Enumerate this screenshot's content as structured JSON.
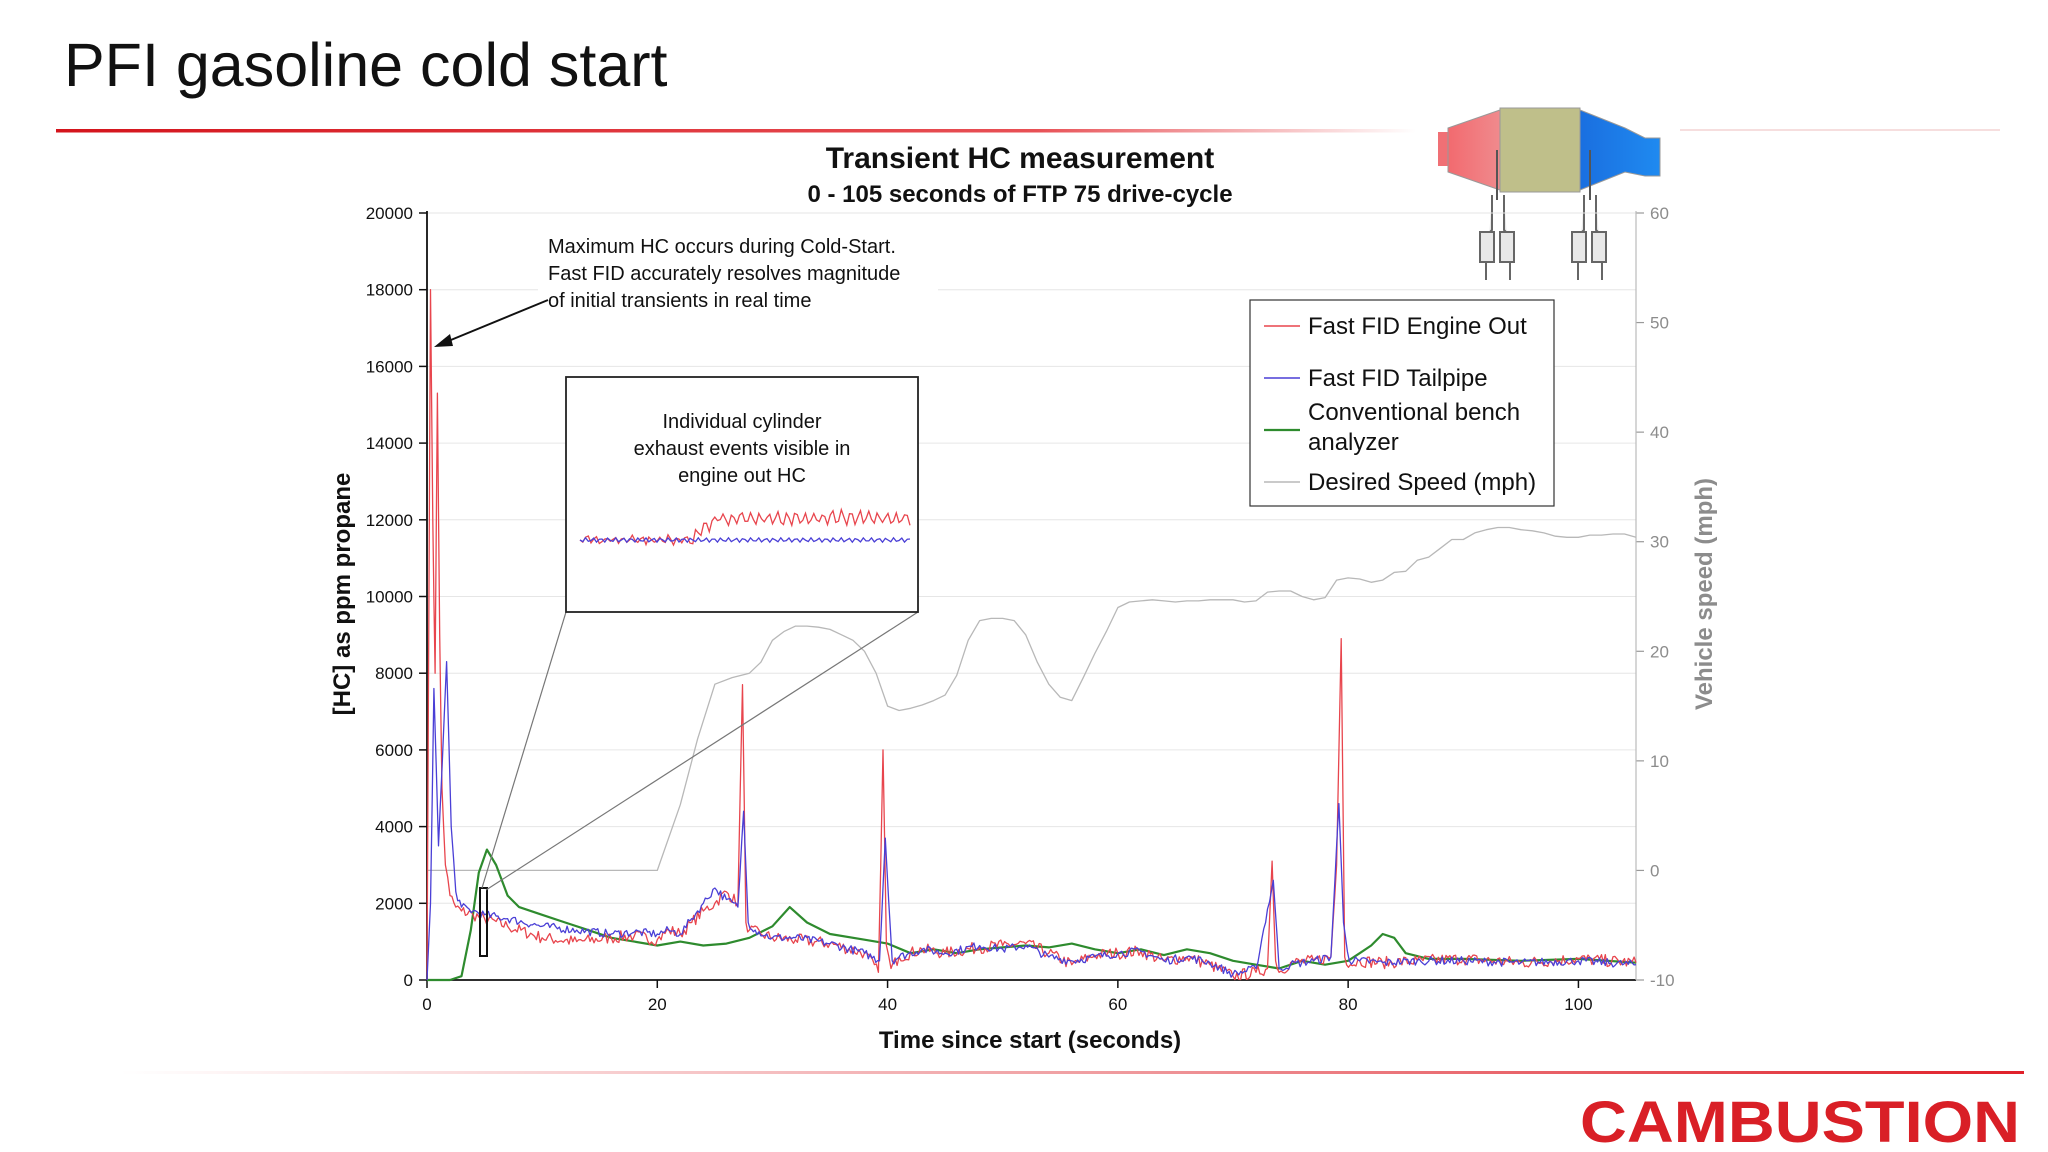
{
  "slide": {
    "title": "PFI gasoline cold start",
    "logo_text": "CAMBUSTION",
    "accent_color": "#e0202a"
  },
  "chart_data": {
    "type": "line",
    "title": "Transient HC measurement",
    "subtitle": "0 - 105 seconds of FTP 75 drive-cycle",
    "xlabel": "Time since start (seconds)",
    "ylabel": "[HC] as ppm propane",
    "y2label": "Vehicle speed (mph)",
    "xlim": [
      0,
      105
    ],
    "ylim": [
      0,
      20000
    ],
    "y2lim": [
      -10,
      60
    ],
    "x_ticks": [
      "0",
      "20",
      "40",
      "60",
      "80",
      "100"
    ],
    "y_ticks": [
      "0",
      "2000",
      "4000",
      "6000",
      "8000",
      "10000",
      "12000",
      "14000",
      "16000",
      "18000",
      "20000"
    ],
    "y2_ticks": [
      "-10",
      "0",
      "10",
      "20",
      "30",
      "40",
      "50",
      "60"
    ],
    "grid": "horizontal",
    "legend_position": "top-right",
    "legend": [
      {
        "label": "Fast FID Engine Out",
        "color": "#e8454d"
      },
      {
        "label": "Fast FID Tailpipe",
        "color": "#4a3fd6"
      },
      {
        "label": "Conventional bench analyzer",
        "color": "#2e8b2e"
      },
      {
        "label": "Desired Speed (mph)",
        "color": "#b8b8b8"
      }
    ],
    "annotations": {
      "cold_start": [
        "Maximum HC occurs during Cold-Start.",
        "Fast FID accurately resolves magnitude",
        "of initial transients in real time"
      ],
      "inset": [
        "Individual cylinder",
        "exhaust events visible in",
        "engine out HC"
      ]
    },
    "series": [
      {
        "name": "Fast FID Engine Out",
        "axis": "left",
        "color": "#e8454d",
        "x": [
          0,
          0.3,
          0.5,
          0.7,
          0.9,
          1.1,
          1.3,
          1.6,
          2,
          2.5,
          3,
          4,
          5,
          7,
          10,
          13,
          16,
          18,
          20,
          21,
          22,
          23,
          24,
          25,
          26,
          27,
          27.4,
          27.7,
          28,
          29,
          30,
          32,
          35,
          38,
          39.2,
          39.6,
          39.9,
          40.3,
          41,
          43,
          45,
          48,
          50,
          52,
          54,
          56,
          58,
          60,
          62,
          64,
          66,
          68,
          70,
          72,
          73,
          73.4,
          73.7,
          74,
          75,
          77,
          78.5,
          79,
          79.4,
          79.7,
          80.2,
          81,
          83,
          86,
          90,
          95,
          100,
          105
        ],
        "values": [
          0,
          18000,
          12000,
          8000,
          15300,
          9000,
          5000,
          3000,
          2200,
          1900,
          1800,
          1700,
          1600,
          1400,
          1100,
          1000,
          1100,
          1150,
          1050,
          1300,
          1200,
          1500,
          1800,
          2000,
          2300,
          2000,
          7700,
          1500,
          1300,
          1200,
          1100,
          1050,
          950,
          700,
          200,
          6000,
          900,
          300,
          600,
          800,
          700,
          850,
          900,
          950,
          700,
          400,
          650,
          700,
          750,
          500,
          600,
          400,
          100,
          200,
          300,
          3100,
          500,
          200,
          450,
          500,
          600,
          3000,
          8900,
          600,
          400,
          500,
          450,
          500,
          550,
          450,
          550,
          450
        ]
      },
      {
        "name": "Fast FID Tailpipe",
        "axis": "left",
        "color": "#4a3fd6",
        "x": [
          0,
          0.3,
          0.6,
          1,
          1.3,
          1.7,
          2.1,
          2.5,
          3,
          4,
          5,
          7,
          10,
          13,
          16,
          18,
          20,
          21,
          22,
          23,
          24,
          25,
          26,
          27,
          27.5,
          27.9,
          28.5,
          30,
          32,
          35,
          38,
          39.3,
          39.8,
          40.4,
          41,
          43,
          45,
          48,
          50,
          52,
          54,
          56,
          58,
          60,
          62,
          64,
          66,
          68,
          70,
          72,
          73.5,
          74,
          75,
          77,
          78.5,
          79.2,
          79.6,
          80.1,
          81,
          83,
          86,
          90,
          95,
          100,
          105
        ],
        "values": [
          0,
          2000,
          7600,
          3500,
          5500,
          8300,
          4000,
          2300,
          1900,
          1800,
          1700,
          1600,
          1400,
          1300,
          1200,
          1250,
          1200,
          1300,
          1200,
          1600,
          2000,
          2400,
          2100,
          1900,
          4400,
          1500,
          1300,
          1100,
          1100,
          950,
          700,
          500,
          3700,
          500,
          600,
          800,
          700,
          900,
          800,
          900,
          600,
          500,
          600,
          700,
          750,
          500,
          600,
          450,
          150,
          300,
          2600,
          300,
          400,
          500,
          600,
          4600,
          1500,
          500,
          500,
          450,
          500,
          500,
          450,
          500,
          400
        ]
      },
      {
        "name": "Conventional bench analyzer",
        "axis": "left",
        "color": "#2e8b2e",
        "x": [
          0,
          2,
          3,
          3.8,
          4.5,
          5.2,
          6,
          7,
          8,
          10,
          12,
          14,
          16,
          18,
          20,
          22,
          24,
          26,
          28,
          30,
          31.5,
          33,
          35,
          38,
          40,
          42,
          44,
          46,
          48,
          50,
          52,
          54,
          56,
          58,
          60,
          62,
          64,
          66,
          68,
          70,
          72,
          74,
          76,
          78,
          80,
          81,
          82,
          83,
          84,
          85,
          87,
          90,
          95,
          100,
          105
        ],
        "values": [
          0,
          0,
          100,
          1300,
          2800,
          3400,
          3000,
          2200,
          1900,
          1700,
          1500,
          1300,
          1100,
          1000,
          900,
          1000,
          900,
          950,
          1100,
          1400,
          1900,
          1500,
          1200,
          1050,
          950,
          700,
          800,
          700,
          800,
          850,
          900,
          850,
          950,
          800,
          700,
          800,
          650,
          800,
          700,
          500,
          400,
          300,
          500,
          400,
          500,
          700,
          900,
          1200,
          1100,
          700,
          550,
          550,
          500,
          550,
          450
        ]
      },
      {
        "name": "Desired Speed (mph)",
        "axis": "right",
        "color": "#b8b8b8",
        "x": [
          0,
          20,
          22,
          23.5,
          25,
          26.5,
          28,
          29,
          30,
          31,
          32,
          33,
          34,
          35,
          36,
          37,
          38,
          39,
          40,
          41,
          42,
          43,
          44,
          45,
          46,
          47,
          48,
          49,
          50,
          51,
          52,
          53,
          54,
          55,
          56,
          57,
          58,
          59,
          60,
          61,
          62,
          63,
          64,
          65,
          66,
          67,
          68,
          69,
          70,
          71,
          72,
          73,
          74,
          75,
          76,
          77,
          78,
          79,
          80,
          81,
          82,
          83,
          84,
          85,
          86,
          87,
          88,
          89,
          90,
          91,
          92,
          93,
          94,
          95,
          96,
          97,
          98,
          99,
          100,
          101,
          102,
          103,
          104,
          105
        ],
        "values": [
          0,
          0,
          6,
          12,
          17,
          17.6,
          18,
          19,
          21,
          21.8,
          22.3,
          22.3,
          22.2,
          22,
          21.5,
          21,
          20,
          18,
          15,
          14.6,
          14.8,
          15.1,
          15.5,
          16,
          17.8,
          21,
          22.8,
          23,
          23,
          22.8,
          21.5,
          19,
          17,
          15.8,
          15.5,
          17.6,
          19.8,
          21.8,
          24.0,
          24.5,
          24.6,
          24.7,
          24.6,
          24.5,
          24.6,
          24.6,
          24.7,
          24.7,
          24.7,
          24.5,
          24.6,
          25.4,
          25.5,
          25.5,
          25.0,
          24.7,
          24.9,
          26.5,
          26.7,
          26.6,
          26.3,
          26.5,
          27.2,
          27.3,
          28.3,
          28.6,
          29.4,
          30.2,
          30.2,
          30.8,
          31.1,
          31.3,
          31.3,
          31.1,
          31.0,
          30.8,
          30.5,
          30.4,
          30.4,
          30.6,
          30.6,
          30.7,
          30.7,
          30.4
        ]
      }
    ]
  }
}
